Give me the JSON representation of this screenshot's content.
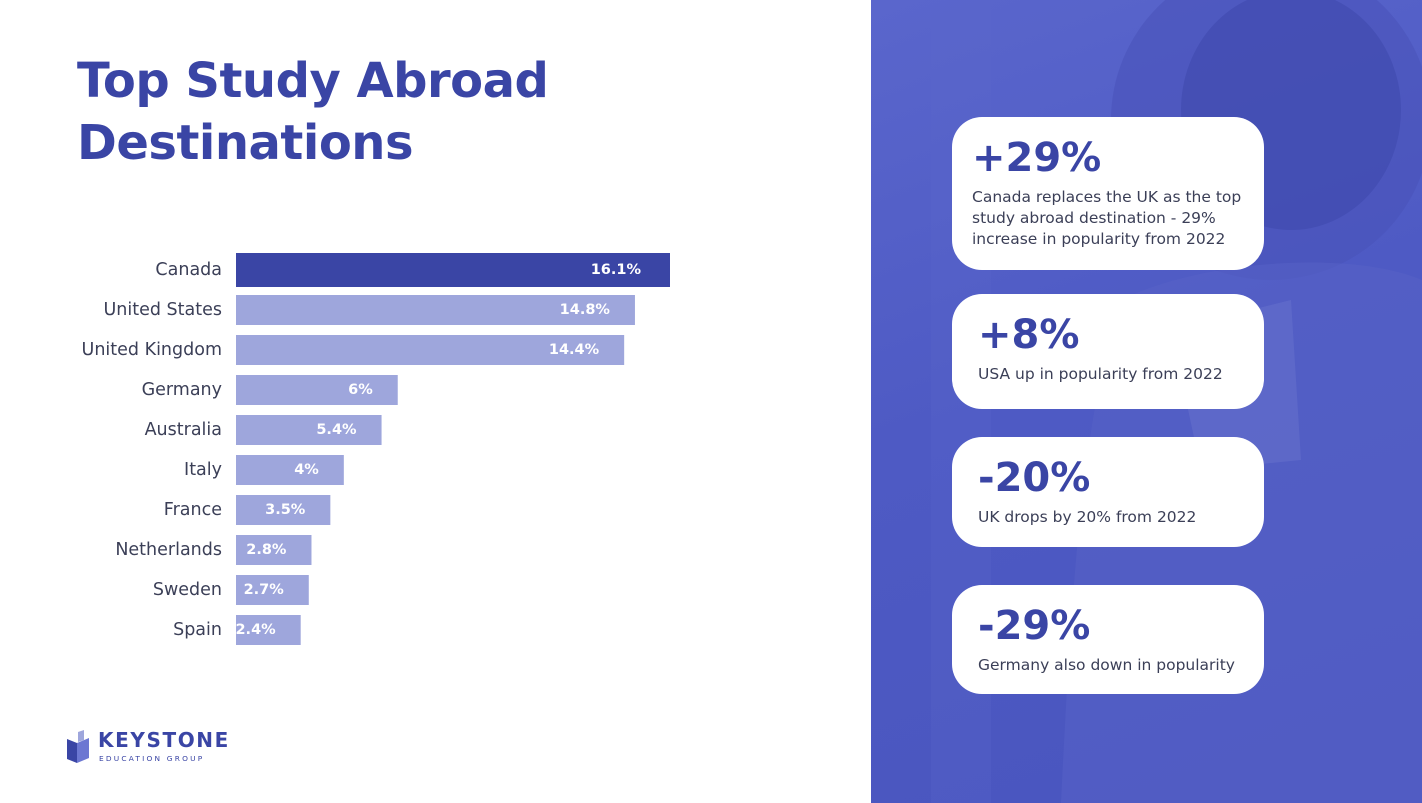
{
  "title": {
    "line1": "Top Study Abroad",
    "line2": "Destinations"
  },
  "chart_data": {
    "type": "bar",
    "orientation": "horizontal",
    "categories": [
      "Canada",
      "United States",
      "United Kingdom",
      "Germany",
      "Australia",
      "Italy",
      "France",
      "Netherlands",
      "Sweden",
      "Spain"
    ],
    "values": [
      16.1,
      14.8,
      14.4,
      6,
      5.4,
      4,
      3.5,
      2.8,
      2.7,
      2.4
    ],
    "value_labels": [
      "16.1%",
      "14.8%",
      "14.4%",
      "6%",
      "5.4%",
      "4%",
      "3.5%",
      "2.8%",
      "2.7%",
      "2.4%"
    ],
    "unit": "%",
    "highlight_index": 0,
    "colors": {
      "highlight": "#3a45a5",
      "default": "#9ea6dc"
    },
    "grid": false
  },
  "cards": [
    {
      "stat": "+29%",
      "text": "Canada replaces the UK as the top study abroad destination - 29% increase in popularity from 2022"
    },
    {
      "stat": "+8%",
      "text": "USA up in popularity from 2022"
    },
    {
      "stat": "-20%",
      "text": "UK drops by 20% from 2022"
    },
    {
      "stat": "-29%",
      "text": "Germany also down in popularity"
    }
  ],
  "logo": {
    "name": "KEYSTONE",
    "subtitle": "EDUCATION GROUP"
  },
  "colors": {
    "brand": "#3a45a5",
    "panel": "#5360c8",
    "card": "#ffffff",
    "text": "#3b3f57"
  }
}
